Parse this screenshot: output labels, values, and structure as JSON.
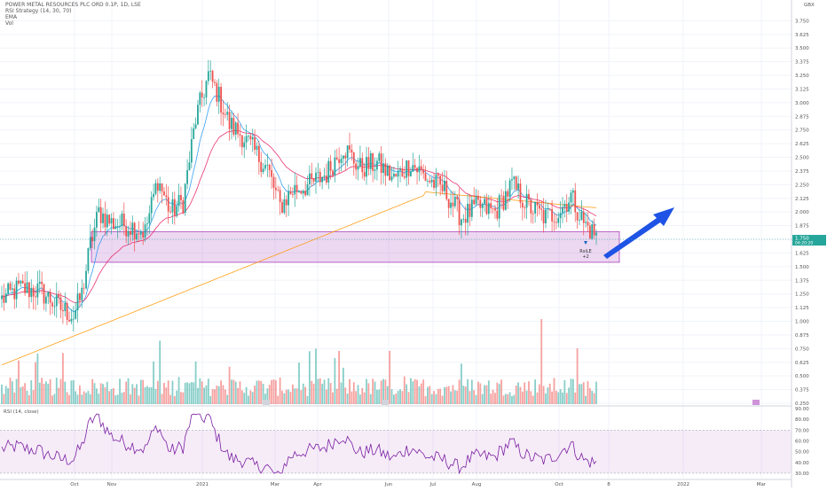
{
  "legend": {
    "title": "POWER METAL RESOURCES PLC ORD 0.1P, 1D, LSE",
    "ind1": "RSI Strategy (14, 30, 70)",
    "ind2": "EMA",
    "ind3": "Vol"
  },
  "currency": "GBX",
  "price_badge": "1.750",
  "price_badge_sub": "04:20:20",
  "rsi_label": "RSI (14, close)",
  "annotation": {
    "line1": "RsiLE",
    "line2": "+2"
  },
  "colors": {
    "up": "#26a69a",
    "down": "#ef5350",
    "zone": "#9c27b0",
    "arrow": "#1e53e5",
    "rsi": "#7b1fa2"
  },
  "chart_data": {
    "type": "candlestick",
    "ylim": [
      0.25,
      3.875
    ],
    "yticks": [
      "3.750",
      "3.625",
      "3.500",
      "3.375",
      "3.250",
      "3.125",
      "3.000",
      "2.875",
      "2.750",
      "2.625",
      "2.500",
      "2.375",
      "2.250",
      "2.125",
      "2.000",
      "1.875",
      "1.750",
      "1.625",
      "1.500",
      "1.375",
      "1.250",
      "1.125",
      "1.000",
      "0.875",
      "0.750",
      "0.625",
      "0.500",
      "0.375",
      "0.250"
    ],
    "xticks": [
      "Oct",
      "Nov",
      "2021",
      "Mar",
      "Apr",
      "Jun",
      "Jul",
      "Aug",
      "Oct",
      "8",
      "2022",
      "Mar"
    ],
    "support_zone": [
      1.54,
      1.82
    ],
    "rsi": {
      "ylim": [
        25,
        90
      ],
      "band": [
        30,
        70
      ],
      "yticks": [
        "90.00",
        "80.00",
        "70.00",
        "60.00",
        "50.00",
        "40.00",
        "30.00"
      ]
    },
    "key_closes": [
      [
        0,
        1.2
      ],
      [
        8,
        1.3
      ],
      [
        18,
        1.28
      ],
      [
        28,
        1.12
      ],
      [
        34,
        1.05
      ],
      [
        38,
        1.25
      ],
      [
        42,
        1.7
      ],
      [
        46,
        2.0
      ],
      [
        52,
        1.9
      ],
      [
        60,
        1.88
      ],
      [
        68,
        1.82
      ],
      [
        74,
        2.3
      ],
      [
        80,
        2.0
      ],
      [
        86,
        2.1
      ],
      [
        92,
        2.85
      ],
      [
        98,
        3.25
      ],
      [
        102,
        3.1
      ],
      [
        108,
        2.8
      ],
      [
        114,
        2.7
      ],
      [
        120,
        2.55
      ],
      [
        126,
        2.4
      ],
      [
        132,
        2.05
      ],
      [
        138,
        2.2
      ],
      [
        146,
        2.25
      ],
      [
        154,
        2.35
      ],
      [
        162,
        2.6
      ],
      [
        170,
        2.4
      ],
      [
        178,
        2.45
      ],
      [
        186,
        2.3
      ],
      [
        194,
        2.45
      ],
      [
        202,
        2.3
      ],
      [
        210,
        2.2
      ],
      [
        218,
        1.95
      ],
      [
        226,
        2.05
      ],
      [
        234,
        2.0
      ],
      [
        242,
        2.25
      ],
      [
        250,
        2.05
      ],
      [
        258,
        1.95
      ],
      [
        264,
        2.0
      ],
      [
        270,
        2.15
      ],
      [
        276,
        1.9
      ],
      [
        282,
        1.78
      ]
    ]
  }
}
